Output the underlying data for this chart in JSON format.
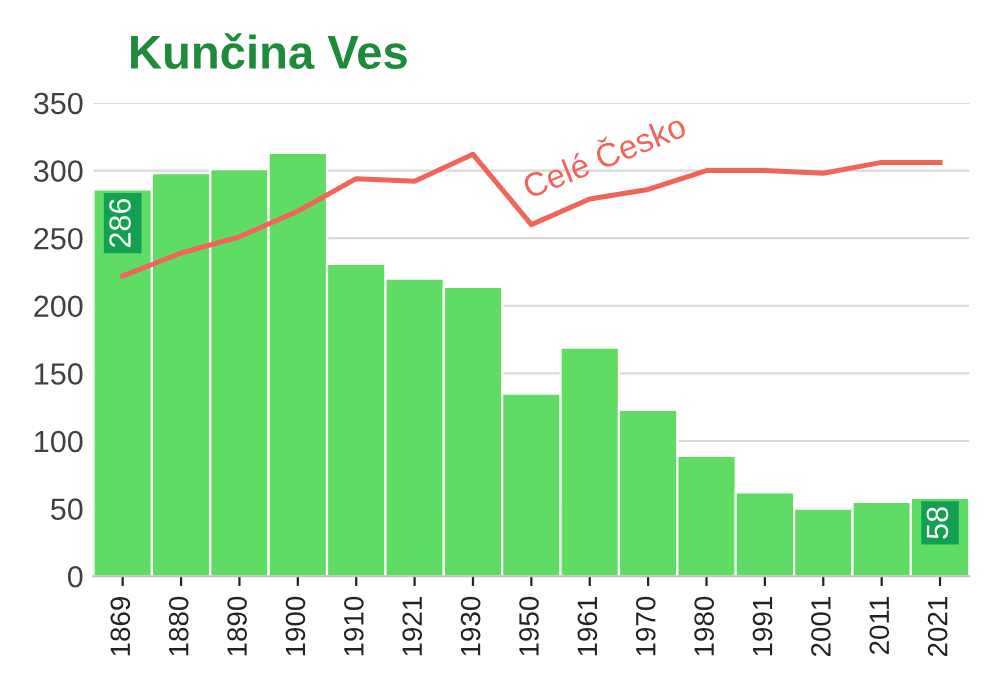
{
  "chart_data": {
    "type": "bar",
    "title": "Kunčina Ves",
    "categories": [
      "1869",
      "1880",
      "1890",
      "1900",
      "1910",
      "1921",
      "1930",
      "1950",
      "1961",
      "1970",
      "1980",
      "1991",
      "2001",
      "2011",
      "2021"
    ],
    "series": [
      {
        "color": "#5fdc64",
        "values": [
          286,
          298,
          301,
          313,
          231,
          220,
          214,
          135,
          169,
          123,
          89,
          62,
          50,
          55,
          58
        ],
        "value_labels": [
          "286",
          null,
          null,
          null,
          null,
          null,
          null,
          null,
          null,
          null,
          null,
          null,
          null,
          null,
          "58"
        ]
      },
      {
        "type": "line",
        "name": "Celé Česko",
        "color": "#f0645a",
        "values": [
          222,
          239,
          251,
          270,
          294,
          292,
          312,
          260,
          279,
          286,
          300,
          300,
          298,
          306,
          306
        ]
      }
    ],
    "ylim": [
      0,
      350
    ],
    "yticks": [
      0,
      50,
      100,
      150,
      200,
      250,
      300,
      350
    ],
    "grid": "y",
    "legend": false
  }
}
